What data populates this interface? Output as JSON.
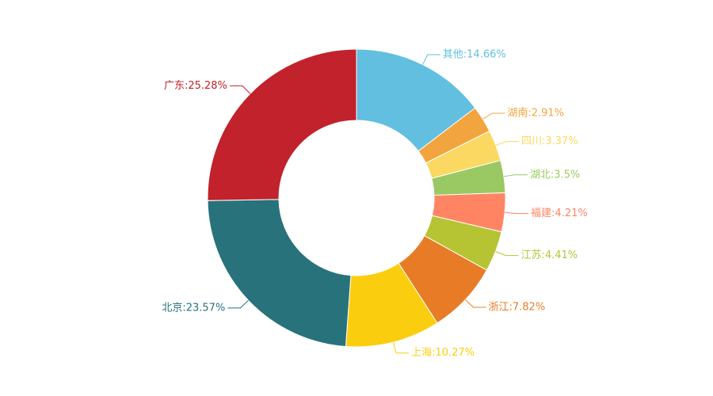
{
  "chart_data": {
    "type": "pie",
    "variant": "donut",
    "title": "",
    "start_angle_deg": 90,
    "direction": "clockwise",
    "slices": [
      {
        "name": "其他",
        "value": 14.66,
        "label": "其他:14.66%",
        "color": "#62bfe0"
      },
      {
        "name": "湖南",
        "value": 2.91,
        "label": "湖南:2.91%",
        "color": "#f2a53f"
      },
      {
        "name": "四川",
        "value": 3.37,
        "label": "四川:3.37%",
        "color": "#fbd862"
      },
      {
        "name": "湖北",
        "value": 3.5,
        "label": "湖北:3.5%",
        "color": "#9ac963"
      },
      {
        "name": "福建",
        "value": 4.21,
        "label": "福建:4.21%",
        "color": "#ff8464"
      },
      {
        "name": "江苏",
        "value": 4.41,
        "label": "江苏:4.41%",
        "color": "#b6c434"
      },
      {
        "name": "浙江",
        "value": 7.82,
        "label": "浙江:7.82%",
        "color": "#e87c26"
      },
      {
        "name": "上海",
        "value": 10.27,
        "label": "上海:10.27%",
        "color": "#fbcd0f"
      },
      {
        "name": "北京",
        "value": 23.57,
        "label": "北京:23.57%",
        "color": "#28727b"
      },
      {
        "name": "广东",
        "value": 25.28,
        "label": "广东:25.28%",
        "color": "#c1222b"
      }
    ],
    "legend": "none"
  }
}
